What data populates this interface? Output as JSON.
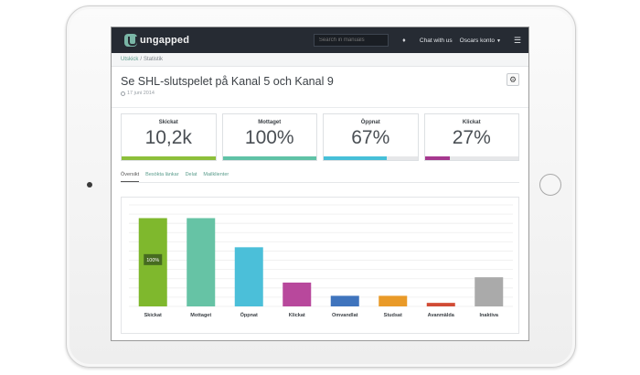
{
  "navbar": {
    "logo_text": "ungapped",
    "search_placeholder": "Search in manuals",
    "bell_icon": "bell-icon",
    "chat_label": "Chat with us",
    "account_label": "Oscars konto",
    "menu_icon": "hamburger-icon"
  },
  "breadcrumb": {
    "parent": "Utskick",
    "separator": "/",
    "current": "Statistik"
  },
  "header": {
    "title": "Se SHL-slutspelet på Kanal 5 och Kanal 9",
    "date": "17 juni 2014",
    "settings_icon": "gear-icon"
  },
  "stats": [
    {
      "label": "Skickat",
      "value": "10,2k",
      "fill": 1.0,
      "color": "#8dbf3a"
    },
    {
      "label": "Mottaget",
      "value": "100%",
      "fill": 1.0,
      "color": "#5fc2a6"
    },
    {
      "label": "Öppnat",
      "value": "67%",
      "fill": 0.67,
      "color": "#46bfd8"
    },
    {
      "label": "Klickat",
      "value": "27%",
      "fill": 0.27,
      "color": "#a6388f"
    }
  ],
  "tabs": [
    {
      "label": "Översikt",
      "active": true
    },
    {
      "label": "Besökta länkar",
      "active": false
    },
    {
      "label": "Delat",
      "active": false
    },
    {
      "label": "Mailklienter",
      "active": false
    }
  ],
  "chart_data": {
    "type": "bar",
    "categories": [
      "Skickat",
      "Mottaget",
      "Öppnat",
      "Klickat",
      "Omvandlat",
      "Studsat",
      "Avanmälda",
      "Inaktiva"
    ],
    "values": [
      100,
      100,
      67,
      27,
      12,
      12,
      4,
      33
    ],
    "colors": [
      "#7fb82d",
      "#66c3a5",
      "#4bbfd9",
      "#b8489c",
      "#3f74bd",
      "#e99a28",
      "#d14b35",
      "#aaaaaa"
    ],
    "ylim": [
      0,
      115
    ],
    "grid": true,
    "tooltip": {
      "category": "Skickat",
      "text": "100%"
    }
  }
}
